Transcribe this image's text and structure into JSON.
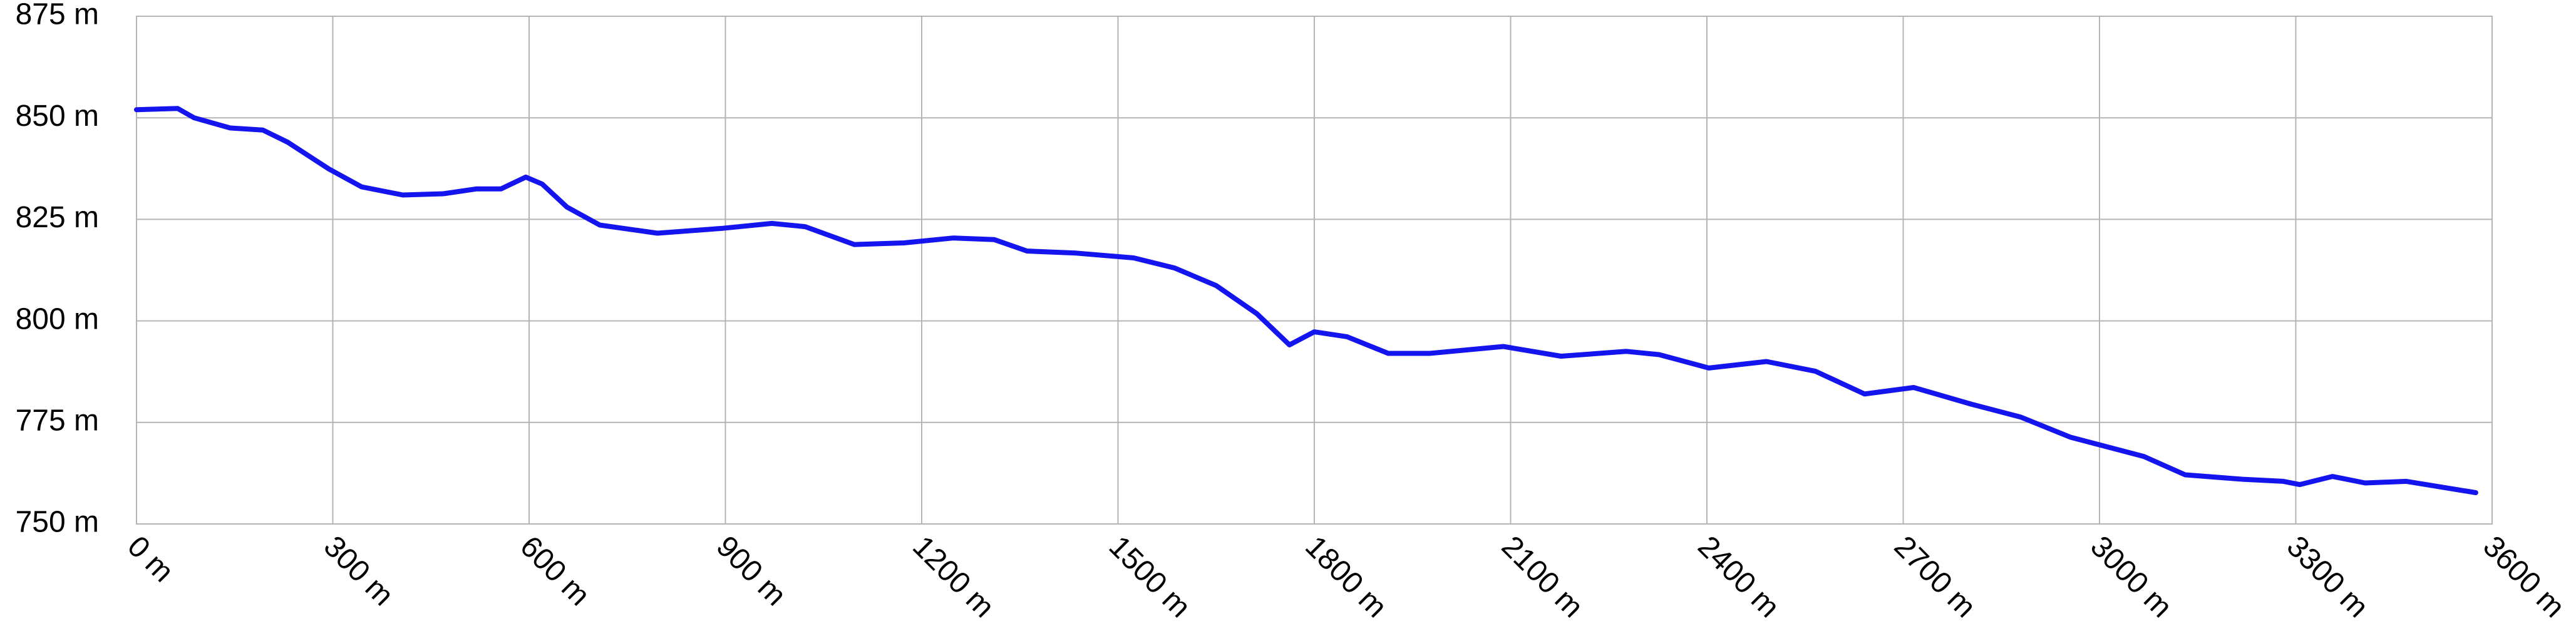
{
  "chart_data": {
    "type": "line",
    "x": [
      0,
      63,
      88,
      143,
      193,
      231,
      294,
      344,
      407,
      469,
      520,
      557,
      595,
      620,
      658,
      708,
      796,
      896,
      971,
      1022,
      1097,
      1173,
      1248,
      1311,
      1361,
      1436,
      1524,
      1587,
      1650,
      1712,
      1762,
      1800,
      1850,
      1913,
      1976,
      2089,
      2177,
      2277,
      2327,
      2403,
      2491,
      2566,
      2641,
      2716,
      2804,
      2880,
      2955,
      3068,
      3131,
      3219,
      3281,
      3306,
      3356,
      3406,
      3469,
      3575
    ],
    "series": [
      {
        "color": "#1414ee",
        "values": [
          852,
          852.3,
          850,
          847.5,
          847,
          844,
          837.4,
          833,
          831,
          831.3,
          832.5,
          832.5,
          835.4,
          833.7,
          828,
          823.6,
          821.6,
          822.8,
          824,
          823.2,
          818.8,
          819.2,
          820.4,
          820,
          817.2,
          816.7,
          815.5,
          813,
          808.7,
          801.8,
          794.1,
          797.3,
          796.1,
          792,
          792,
          793.7,
          791.3,
          792.5,
          791.7,
          788.4,
          790,
          787.6,
          782,
          783.6,
          779.5,
          776.3,
          771.4,
          766.6,
          762.1,
          761,
          760.5,
          759.7,
          761.7,
          760.1,
          760.5,
          757.7
        ]
      }
    ],
    "xlim": [
      0,
      3600
    ],
    "xticks": [
      {
        "value": 0,
        "label": "0 m"
      },
      {
        "value": 300,
        "label": "300 m"
      },
      {
        "value": 600,
        "label": "600 m"
      },
      {
        "value": 900,
        "label": "900 m"
      },
      {
        "value": 1200,
        "label": "1200 m"
      },
      {
        "value": 1500,
        "label": "1500 m"
      },
      {
        "value": 1800,
        "label": "1800 m"
      },
      {
        "value": 2100,
        "label": "2100 m"
      },
      {
        "value": 2400,
        "label": "2400 m"
      },
      {
        "value": 2700,
        "label": "2700 m"
      },
      {
        "value": 3000,
        "label": "3000 m"
      },
      {
        "value": 3300,
        "label": "3300 m"
      },
      {
        "value": 3600,
        "label": "3600 m"
      }
    ],
    "ylim": [
      750,
      875
    ],
    "yticks": [
      {
        "value": 750,
        "label": "750 m"
      },
      {
        "value": 775,
        "label": "775 m"
      },
      {
        "value": 800,
        "label": "800 m"
      },
      {
        "value": 825,
        "label": "825 m"
      },
      {
        "value": 850,
        "label": "850 m"
      },
      {
        "value": 875,
        "label": "875 m"
      }
    ],
    "grid": true
  }
}
